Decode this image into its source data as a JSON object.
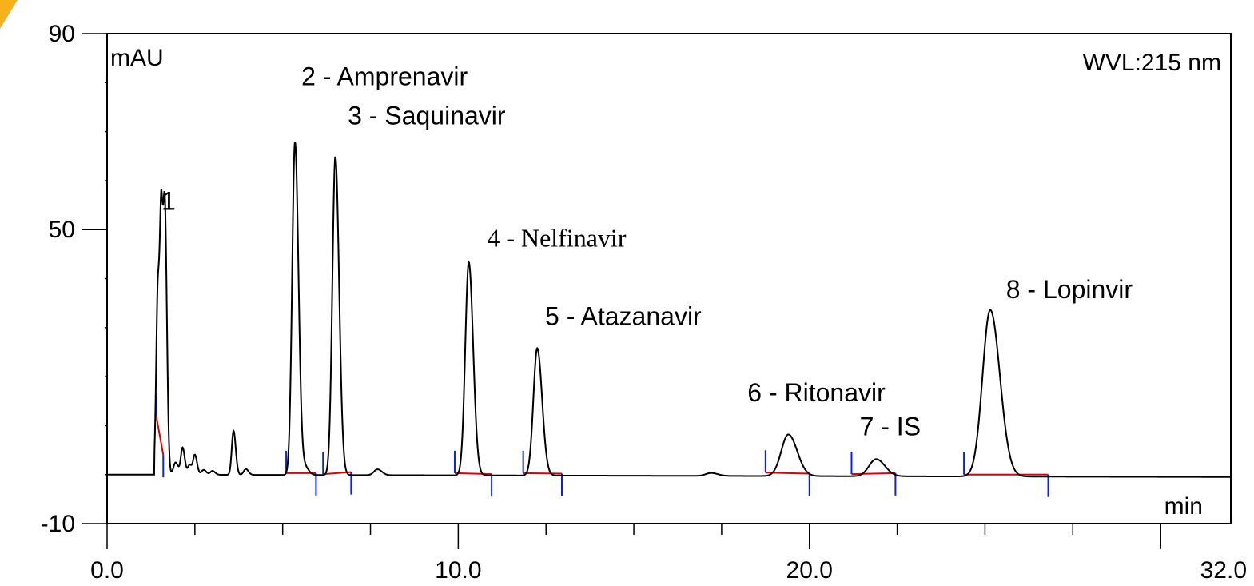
{
  "colors": {
    "trace": "#000000",
    "baseline": "#e00000",
    "marker": "#1020e0",
    "axis": "#000000",
    "corner_accent": "#f6b21a"
  },
  "chart_data": {
    "type": "line",
    "title": "",
    "xlabel": "min",
    "ylabel": "mAU",
    "wavelength_label": "WVL:215 nm",
    "xlim": [
      0.0,
      32.0
    ],
    "ylim": [
      -10,
      90
    ],
    "x_tick_labels": [
      "0.0",
      "10.0",
      "20.0",
      "32.0"
    ],
    "x_tick_values": [
      0,
      10,
      20,
      32
    ],
    "y_tick_labels": [
      "90",
      "50",
      "-10"
    ],
    "y_tick_values": [
      90,
      50,
      -10
    ],
    "grid": false,
    "series": [
      {
        "baseline": 0,
        "drift_end": -0.5,
        "peaks": [
          {
            "label": "1",
            "rt": 1.45,
            "height": 39,
            "width": 0.05
          },
          {
            "label": "",
            "rt": 1.55,
            "height": 43,
            "width": 0.04
          },
          {
            "label": "",
            "rt": 1.65,
            "height": 50,
            "width": 0.045
          },
          {
            "label": "",
            "rt": 1.95,
            "height": 2.5,
            "width": 0.06
          },
          {
            "label": "",
            "rt": 2.15,
            "height": 5.5,
            "width": 0.05
          },
          {
            "label": "",
            "rt": 2.35,
            "height": 2,
            "width": 0.05
          },
          {
            "label": "",
            "rt": 2.5,
            "height": 4,
            "width": 0.05
          },
          {
            "label": "",
            "rt": 2.75,
            "height": 1,
            "width": 0.06
          },
          {
            "label": "",
            "rt": 3.0,
            "height": 0.8,
            "width": 0.06
          },
          {
            "label": "",
            "rt": 3.6,
            "height": 9,
            "width": 0.05
          },
          {
            "label": "",
            "rt": 3.95,
            "height": 1.2,
            "width": 0.06
          },
          {
            "label": "2 - Amprenavir",
            "rt": 5.35,
            "height": 68,
            "width": 0.08
          },
          {
            "label": "",
            "rt": 5.65,
            "height": 1.5,
            "width": 0.08
          },
          {
            "label": "3 - Saquinavir",
            "rt": 6.5,
            "height": 65,
            "width": 0.085
          },
          {
            "label": "",
            "rt": 7.7,
            "height": 1.2,
            "width": 0.1
          },
          {
            "label": "4 - Nelfinavir",
            "rt": 10.3,
            "height": 43.5,
            "width": 0.1
          },
          {
            "label": "5 - Atazanavir",
            "rt": 12.25,
            "height": 26,
            "width": 0.11
          },
          {
            "label": "",
            "rt": 17.2,
            "height": 0.6,
            "width": 0.15
          },
          {
            "label": "6 - Ritonavir",
            "rt": 19.4,
            "height": 8.5,
            "width": 0.2
          },
          {
            "label": "7 - IS",
            "rt": 21.9,
            "height": 3.5,
            "width": 0.2
          },
          {
            "label": "8 - Lopinvir",
            "rt": 25.15,
            "height": 34,
            "width": 0.22
          }
        ],
        "integration_baselines": [
          {
            "start": 1.4,
            "start_y": 12,
            "end": 1.6,
            "end_y": 4
          },
          {
            "start": 5.1,
            "start_y": 0.3,
            "end": 5.95,
            "end_y": 0.3
          },
          {
            "start": 6.15,
            "start_y": 0.1,
            "end": 6.95,
            "end_y": 0.5
          },
          {
            "start": 9.9,
            "start_y": 0.3,
            "end": 10.95,
            "end_y": 0.1
          },
          {
            "start": 11.85,
            "start_y": 0.3,
            "end": 12.95,
            "end_y": 0.2
          },
          {
            "start": 18.75,
            "start_y": 0.4,
            "end": 20.0,
            "end_y": 0.2
          },
          {
            "start": 21.2,
            "start_y": 0.1,
            "end": 22.45,
            "end_y": 0.3
          },
          {
            "start": 24.4,
            "start_y": 0.0,
            "end": 26.8,
            "end_y": 0.0
          }
        ]
      }
    ],
    "peak_annotations": [
      {
        "text": "1",
        "x": 1.75,
        "y": 54,
        "font": "sans"
      },
      {
        "text": "2 - Amprenavir",
        "x": 7.9,
        "y": 79.5,
        "font": "sans"
      },
      {
        "text": "3 - Saquinavir",
        "x": 9.1,
        "y": 71.5,
        "font": "sans"
      },
      {
        "text": "4 - Nelfinavir",
        "x": 12.8,
        "y": 46.5,
        "font": "serif"
      },
      {
        "text": "5 - Atazanavir",
        "x": 14.7,
        "y": 30.5,
        "font": "sans"
      },
      {
        "text": "6 - Ritonavir",
        "x": 20.2,
        "y": 15,
        "font": "sans"
      },
      {
        "text": "7 - IS",
        "x": 22.3,
        "y": 8,
        "font": "sans"
      },
      {
        "text": "8 - Lopinvir",
        "x": 27.4,
        "y": 36,
        "font": "sans"
      }
    ]
  }
}
